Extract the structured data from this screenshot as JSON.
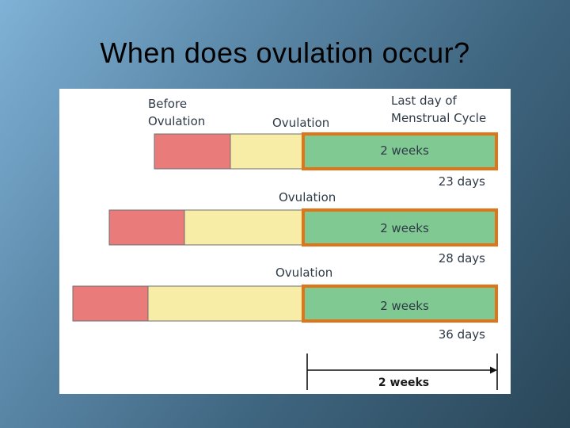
{
  "slide": {
    "title": "When does ovulation occur?"
  },
  "diagram": {
    "header_labels": {
      "before_ovulation_line1": "Before",
      "before_ovulation_line2": "Ovulation",
      "ovulation": "Ovulation",
      "last_day_line1": "Last day of",
      "last_day_line2": "Menstrual Cycle"
    },
    "rows": [
      {
        "segment_label": "2 weeks",
        "cycle_length": "23 days",
        "ovulation_label": ""
      },
      {
        "segment_label": "2 weeks",
        "cycle_length": "28 days",
        "ovulation_label": "Ovulation"
      },
      {
        "segment_label": "2 weeks",
        "cycle_length": "36 days",
        "ovulation_label": "Ovulation"
      }
    ],
    "scale_label": "2 weeks",
    "colors": {
      "menstruation": "#e97b7b",
      "pre_ovulation": "#f8eda6",
      "post_ovulation": "#80c992",
      "highlight_border": "#e07418"
    }
  }
}
